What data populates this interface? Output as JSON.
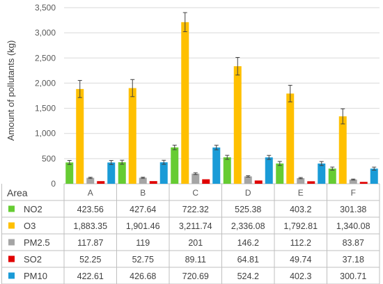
{
  "chart_data": {
    "type": "bar",
    "ylabel": "Amount of pollutants (kg)",
    "ylim": [
      0,
      3500
    ],
    "yticks": [
      "0",
      "500",
      "1,000",
      "1,500",
      "2,000",
      "2,500",
      "3,000",
      "3,500"
    ],
    "grid": true,
    "error_bars": true,
    "categories": [
      "A",
      "B",
      "C",
      "D",
      "E",
      "F"
    ],
    "table_header": "Area",
    "series": [
      {
        "name": "NO2",
        "color": "#66cc33",
        "values": [
          423.56,
          427.64,
          722.32,
          525.38,
          403.2,
          301.38
        ],
        "labels": [
          "423.56",
          "427.64",
          "722.32",
          "525.38",
          "403.2",
          "301.38"
        ],
        "errors": [
          40,
          40,
          45,
          40,
          40,
          30
        ]
      },
      {
        "name": "O3",
        "color": "#ffc000",
        "values": [
          1883.35,
          1901.46,
          3211.74,
          2336.08,
          1792.81,
          1340.08
        ],
        "labels": [
          "1,883.35",
          "1,901.46",
          "3,211.74",
          "2,336.08",
          "1,792.81",
          "1,340.08"
        ],
        "errors": [
          170,
          170,
          190,
          175,
          165,
          150
        ]
      },
      {
        "name": "PM2.5",
        "color": "#a5a5a5",
        "values": [
          117.87,
          119,
          201,
          146.2,
          112.2,
          83.87
        ],
        "labels": [
          "117.87",
          "119",
          "201",
          "146.2",
          "112.2",
          "83.87"
        ],
        "errors": [
          12,
          12,
          18,
          14,
          12,
          10
        ]
      },
      {
        "name": "SO2",
        "color": "#e00000",
        "values": [
          52.25,
          52.75,
          89.11,
          64.81,
          49.74,
          37.18
        ],
        "labels": [
          "52.25",
          "52.75",
          "89.11",
          "64.81",
          "49.74",
          "37.18"
        ],
        "errors": [
          0,
          0,
          0,
          0,
          0,
          0
        ]
      },
      {
        "name": "PM10",
        "color": "#1a9bd7",
        "values": [
          422.61,
          426.68,
          720.69,
          524.2,
          402.3,
          300.71
        ],
        "labels": [
          "422.61",
          "426.68",
          "720.69",
          "524.2",
          "402.3",
          "300.71"
        ],
        "errors": [
          40,
          40,
          45,
          40,
          40,
          30
        ]
      }
    ]
  }
}
